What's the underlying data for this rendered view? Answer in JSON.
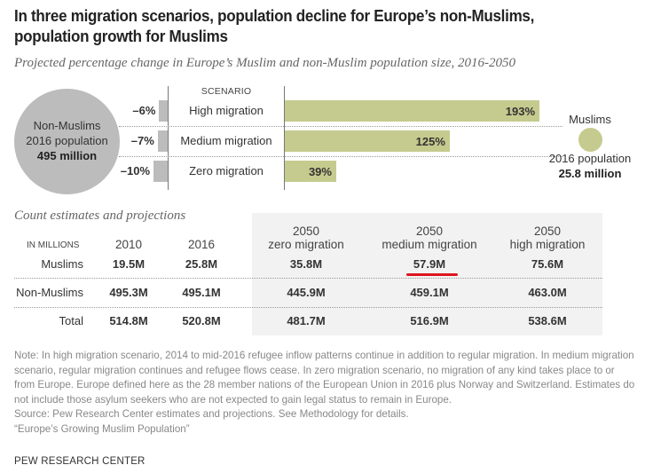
{
  "colors": {
    "muslim_bar": "#c5cb8e",
    "non_muslim_bar": "#bcbcbc",
    "table_bg": "#f2f2f2",
    "highlight_underline": "#e0141e"
  },
  "header": {
    "title_line1": "In three migration scenarios, population decline for Europe’s non-Muslims,",
    "title_line2": "population growth for Muslims",
    "subtitle": "Projected percentage change in Europe’s Muslim and non-Muslim population size, 2016-2050"
  },
  "chart_data": {
    "type": "bar",
    "title": "Projected percentage change in Europe’s Muslim and non-Muslim population size, 2016-2050",
    "category_header": "SCENARIO",
    "categories": [
      "High migration",
      "Medium migration",
      "Zero migration"
    ],
    "series": [
      {
        "name": "Non-Muslims",
        "values": [
          -6,
          -7,
          -10
        ],
        "labels": [
          "–6%",
          "–7%",
          "–10%"
        ]
      },
      {
        "name": "Muslims",
        "values": [
          193,
          125,
          39
        ],
        "labels": [
          "193%",
          "125%",
          "39%"
        ]
      }
    ],
    "unit": "%",
    "legends": {
      "non_muslims": {
        "line1": "Non-Muslims",
        "line2": "2016 population",
        "value": "495 million"
      },
      "muslims": {
        "line1": "Muslims",
        "line2": "2016 population",
        "value": "25.8 million"
      }
    }
  },
  "table": {
    "section_title": "Count estimates and projections",
    "units_label": "IN MILLIONS",
    "columns": [
      {
        "line1": "2010",
        "line2": ""
      },
      {
        "line1": "2016",
        "line2": ""
      },
      {
        "line1": "2050",
        "line2": "zero migration"
      },
      {
        "line1": "2050",
        "line2": "medium migration"
      },
      {
        "line1": "2050",
        "line2": "high migration"
      }
    ],
    "rows": [
      {
        "label": "Muslims",
        "values": [
          "19.5M",
          "25.8M",
          "35.8M",
          "57.9M",
          "75.6M"
        ]
      },
      {
        "label": "Non-Muslims",
        "values": [
          "495.3M",
          "495.1M",
          "445.9M",
          "459.1M",
          "463.0M"
        ]
      },
      {
        "label": "Total",
        "values": [
          "514.8M",
          "520.8M",
          "481.7M",
          "516.9M",
          "538.6M"
        ]
      }
    ],
    "highlighted_cell": "57.9M"
  },
  "notes": {
    "note": "Note: In high migration scenario, 2014 to mid-2016 refugee inflow patterns continue in addition to regular migration. In medium migration scenario, regular migration continues and refugee flows cease. In zero migration scenario, no migration of any kind takes place to or from Europe. Europe defined here as the 28 member nations of the European Union in 2016 plus Norway and Switzerland. Estimates do not include those asylum seekers who are not expected to gain legal status to remain in Europe.",
    "source": "Source: Pew Research Center estimates and projections. See Methodology for details.",
    "report": "“Europe’s Growing Muslim Population”",
    "brand": "PEW RESEARCH CENTER"
  }
}
